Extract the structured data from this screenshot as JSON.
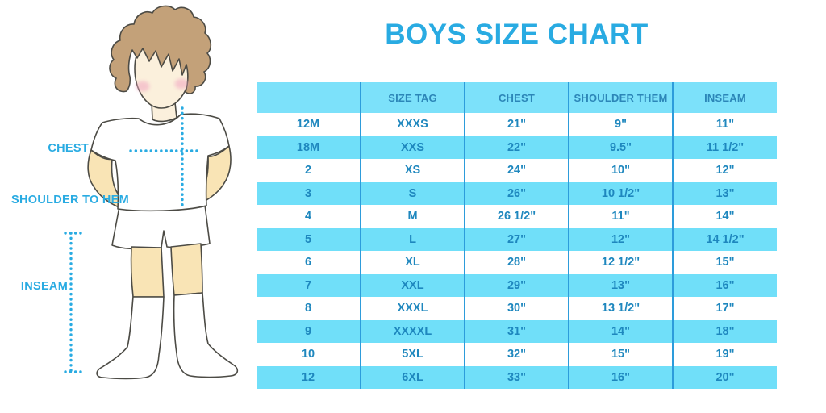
{
  "title": "BOYS SIZE CHART",
  "colors": {
    "accent": "#29ABE2",
    "table_text": "#1E87BE",
    "header_text": "#2C86B8",
    "header_bg": "#7CE1FA",
    "row_alt_bg": "#70DFF9",
    "divider": "#2D9CDB"
  },
  "diagram": {
    "labels": {
      "chest": "CHEST",
      "shoulder_to_hem": "SHOULDER TO HEM",
      "inseam": "INSEAM"
    }
  },
  "chart_data": {
    "type": "table",
    "title": "BOYS SIZE CHART",
    "columns": [
      "",
      "SIZE TAG",
      "CHEST",
      "SHOULDER THEM",
      "INSEAM"
    ],
    "rows": [
      [
        "12M",
        "XXXS",
        "21\"",
        "9\"",
        "11\""
      ],
      [
        "18M",
        "XXS",
        "22\"",
        "9.5\"",
        "11 1/2\""
      ],
      [
        "2",
        "XS",
        "24\"",
        "10\"",
        "12\""
      ],
      [
        "3",
        "S",
        "26\"",
        "10 1/2\"",
        "13\""
      ],
      [
        "4",
        "M",
        "26 1/2\"",
        "11\"",
        "14\""
      ],
      [
        "5",
        "L",
        "27\"",
        "12\"",
        "14 1/2\""
      ],
      [
        "6",
        "XL",
        "28\"",
        "12 1/2\"",
        "15\""
      ],
      [
        "7",
        "XXL",
        "29\"",
        "13\"",
        "16\""
      ],
      [
        "8",
        "XXXL",
        "30\"",
        "13 1/2\"",
        "17\""
      ],
      [
        "9",
        "XXXXL",
        "31\"",
        "14\"",
        "18\""
      ],
      [
        "10",
        "5XL",
        "32\"",
        "15\"",
        "19\""
      ],
      [
        "12",
        "6XL",
        "33\"",
        "16\"",
        "20\""
      ]
    ],
    "layout": {
      "row_striping": "white/cyan alternating",
      "grid": "vertical dividers only"
    }
  }
}
